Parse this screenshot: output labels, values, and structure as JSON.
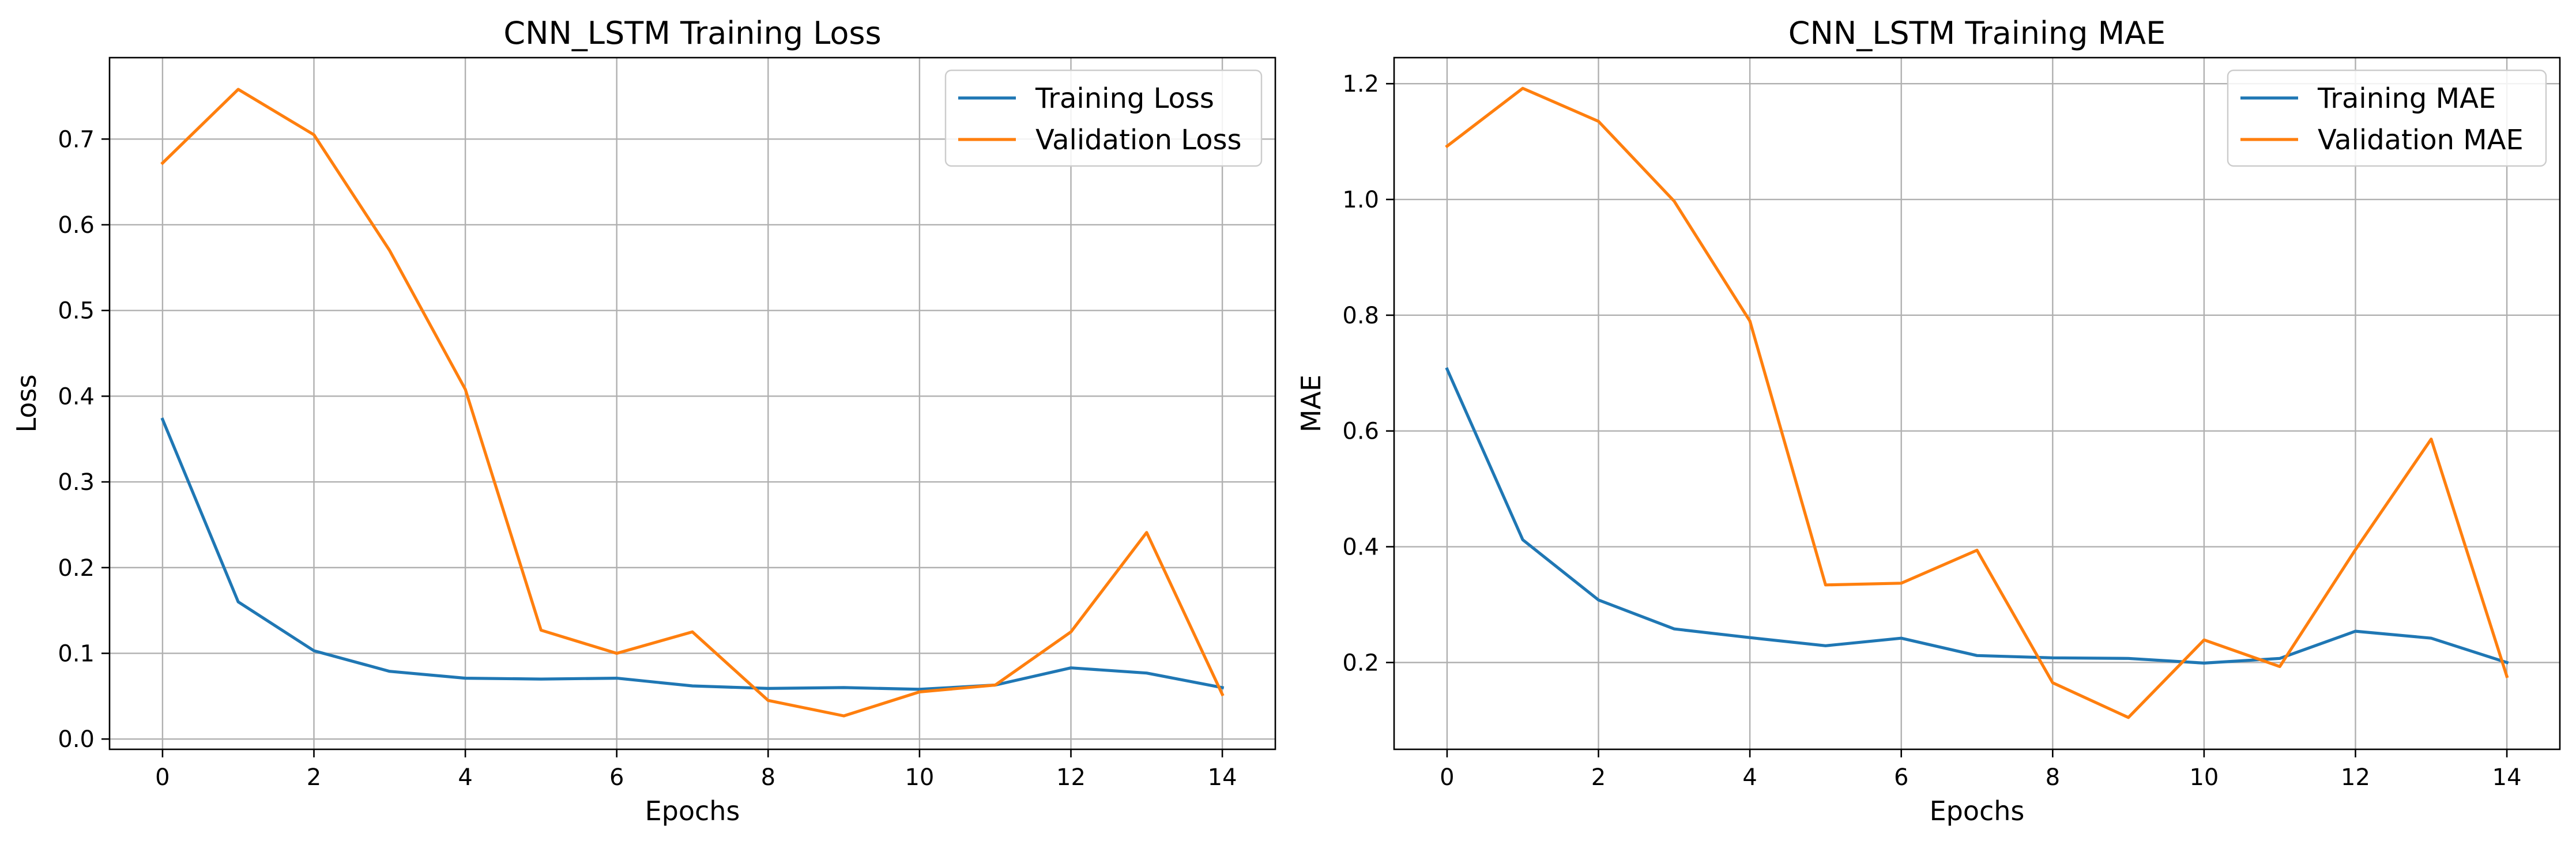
{
  "chart_data": [
    {
      "type": "line",
      "title": "CNN_LSTM Training Loss",
      "xlabel": "Epochs",
      "ylabel": "Loss",
      "x": [
        0,
        1,
        2,
        3,
        4,
        5,
        6,
        7,
        8,
        9,
        10,
        11,
        12,
        13,
        14
      ],
      "xlim": [
        -0.7,
        14.7
      ],
      "ylim": [
        -0.012,
        0.795
      ],
      "xticks": [
        0,
        2,
        4,
        6,
        8,
        10,
        12,
        14
      ],
      "yticks": [
        0.0,
        0.1,
        0.2,
        0.3,
        0.4,
        0.5,
        0.6,
        0.7
      ],
      "ytick_labels": [
        "0.0",
        "0.1",
        "0.2",
        "0.3",
        "0.4",
        "0.5",
        "0.6",
        "0.7"
      ],
      "grid": true,
      "legend_position": "top-right",
      "series": [
        {
          "name": "Training Loss",
          "color": "#1f77b4",
          "values": [
            0.373,
            0.16,
            0.103,
            0.079,
            0.071,
            0.07,
            0.071,
            0.062,
            0.059,
            0.06,
            0.058,
            0.063,
            0.083,
            0.077,
            0.06
          ]
        },
        {
          "name": "Validation Loss",
          "color": "#ff7f0e",
          "values": [
            0.672,
            0.758,
            0.705,
            0.57,
            0.408,
            0.127,
            0.1,
            0.125,
            0.045,
            0.027,
            0.055,
            0.063,
            0.125,
            0.241,
            0.052
          ]
        }
      ]
    },
    {
      "type": "line",
      "title": "CNN_LSTM Training MAE",
      "xlabel": "Epochs",
      "ylabel": "MAE",
      "x": [
        0,
        1,
        2,
        3,
        4,
        5,
        6,
        7,
        8,
        9,
        10,
        11,
        12,
        13,
        14
      ],
      "xlim": [
        -0.7,
        14.7
      ],
      "ylim": [
        0.05,
        1.245
      ],
      "xticks": [
        0,
        2,
        4,
        6,
        8,
        10,
        12,
        14
      ],
      "yticks": [
        0.2,
        0.4,
        0.6,
        0.8,
        1.0,
        1.2
      ],
      "ytick_labels": [
        "0.2",
        "0.4",
        "0.6",
        "0.8",
        "1.0",
        "1.2"
      ],
      "grid": true,
      "legend_position": "top-right",
      "series": [
        {
          "name": "Training MAE",
          "color": "#1f77b4",
          "values": [
            0.707,
            0.412,
            0.308,
            0.258,
            0.243,
            0.229,
            0.242,
            0.212,
            0.208,
            0.207,
            0.199,
            0.207,
            0.254,
            0.242,
            0.2
          ]
        },
        {
          "name": "Validation MAE",
          "color": "#ff7f0e",
          "values": [
            1.092,
            1.192,
            1.135,
            0.997,
            0.79,
            0.334,
            0.337,
            0.394,
            0.165,
            0.105,
            0.239,
            0.193,
            0.395,
            0.586,
            0.176
          ]
        }
      ]
    }
  ]
}
